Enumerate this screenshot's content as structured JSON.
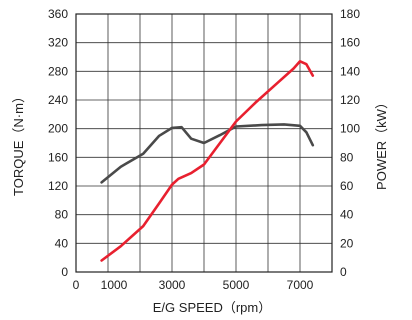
{
  "chart_data": {
    "type": "line",
    "title": "",
    "xlabel": "E/G SPEED（rpm）",
    "ylabel_left": "TORQUE（N·m）",
    "ylabel_right": "POWER（kW）",
    "xlim": [
      0,
      8000
    ],
    "ylim_left": [
      0,
      360
    ],
    "ylim_right": [
      0,
      180
    ],
    "x_ticks": [
      0,
      1000,
      3000,
      5000,
      7000
    ],
    "y_ticks_left": [
      0,
      40,
      80,
      120,
      160,
      200,
      240,
      280,
      320,
      360
    ],
    "y_ticks_right": [
      0,
      20,
      40,
      60,
      80,
      100,
      120,
      140,
      160,
      180
    ],
    "grid": true,
    "series": [
      {
        "name": "",
        "axis": "left",
        "color": "#4a4a4a",
        "x": [
          800,
          1400,
          2100,
          2600,
          3000,
          3300,
          3600,
          4000,
          4500,
          5000,
          5800,
          6500,
          7000,
          7200,
          7400
        ],
        "y": [
          125,
          147,
          165,
          190,
          201,
          202,
          186,
          180,
          191,
          203,
          205,
          206,
          204,
          195,
          177
        ]
      },
      {
        "name": "",
        "axis": "right",
        "color": "#e8202f",
        "x": [
          800,
          1400,
          2100,
          2600,
          3000,
          3200,
          3600,
          4000,
          4500,
          5000,
          5600,
          6300,
          6800,
          7000,
          7200,
          7400
        ],
        "y": [
          8,
          18,
          32,
          48,
          61,
          65,
          69,
          75,
          90,
          105,
          118,
          132,
          142,
          147,
          145,
          137
        ]
      }
    ]
  }
}
